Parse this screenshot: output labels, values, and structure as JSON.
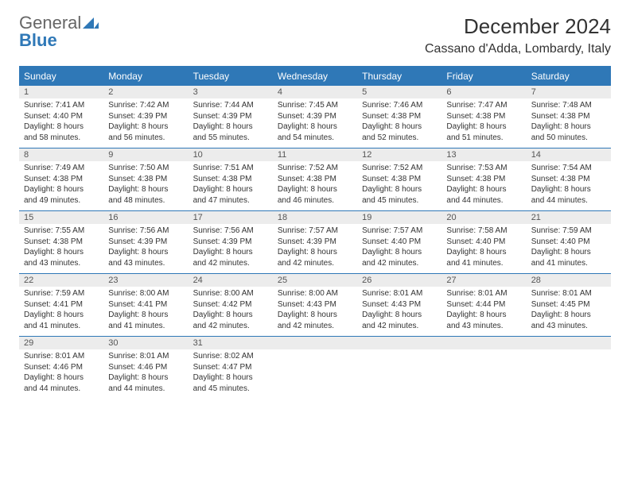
{
  "brand": {
    "part1": "General",
    "part2": "Blue"
  },
  "title": {
    "month": "December 2024",
    "location": "Cassano d'Adda, Lombardy, Italy"
  },
  "colors": {
    "accent": "#2f78b7",
    "daynum_bg": "#ececec",
    "text": "#333333",
    "bg": "#ffffff"
  },
  "dow": [
    "Sunday",
    "Monday",
    "Tuesday",
    "Wednesday",
    "Thursday",
    "Friday",
    "Saturday"
  ],
  "weeks": [
    [
      {
        "n": "1",
        "sr": "Sunrise: 7:41 AM",
        "ss": "Sunset: 4:40 PM",
        "d1": "Daylight: 8 hours",
        "d2": "and 58 minutes."
      },
      {
        "n": "2",
        "sr": "Sunrise: 7:42 AM",
        "ss": "Sunset: 4:39 PM",
        "d1": "Daylight: 8 hours",
        "d2": "and 56 minutes."
      },
      {
        "n": "3",
        "sr": "Sunrise: 7:44 AM",
        "ss": "Sunset: 4:39 PM",
        "d1": "Daylight: 8 hours",
        "d2": "and 55 minutes."
      },
      {
        "n": "4",
        "sr": "Sunrise: 7:45 AM",
        "ss": "Sunset: 4:39 PM",
        "d1": "Daylight: 8 hours",
        "d2": "and 54 minutes."
      },
      {
        "n": "5",
        "sr": "Sunrise: 7:46 AM",
        "ss": "Sunset: 4:38 PM",
        "d1": "Daylight: 8 hours",
        "d2": "and 52 minutes."
      },
      {
        "n": "6",
        "sr": "Sunrise: 7:47 AM",
        "ss": "Sunset: 4:38 PM",
        "d1": "Daylight: 8 hours",
        "d2": "and 51 minutes."
      },
      {
        "n": "7",
        "sr": "Sunrise: 7:48 AM",
        "ss": "Sunset: 4:38 PM",
        "d1": "Daylight: 8 hours",
        "d2": "and 50 minutes."
      }
    ],
    [
      {
        "n": "8",
        "sr": "Sunrise: 7:49 AM",
        "ss": "Sunset: 4:38 PM",
        "d1": "Daylight: 8 hours",
        "d2": "and 49 minutes."
      },
      {
        "n": "9",
        "sr": "Sunrise: 7:50 AM",
        "ss": "Sunset: 4:38 PM",
        "d1": "Daylight: 8 hours",
        "d2": "and 48 minutes."
      },
      {
        "n": "10",
        "sr": "Sunrise: 7:51 AM",
        "ss": "Sunset: 4:38 PM",
        "d1": "Daylight: 8 hours",
        "d2": "and 47 minutes."
      },
      {
        "n": "11",
        "sr": "Sunrise: 7:52 AM",
        "ss": "Sunset: 4:38 PM",
        "d1": "Daylight: 8 hours",
        "d2": "and 46 minutes."
      },
      {
        "n": "12",
        "sr": "Sunrise: 7:52 AM",
        "ss": "Sunset: 4:38 PM",
        "d1": "Daylight: 8 hours",
        "d2": "and 45 minutes."
      },
      {
        "n": "13",
        "sr": "Sunrise: 7:53 AM",
        "ss": "Sunset: 4:38 PM",
        "d1": "Daylight: 8 hours",
        "d2": "and 44 minutes."
      },
      {
        "n": "14",
        "sr": "Sunrise: 7:54 AM",
        "ss": "Sunset: 4:38 PM",
        "d1": "Daylight: 8 hours",
        "d2": "and 44 minutes."
      }
    ],
    [
      {
        "n": "15",
        "sr": "Sunrise: 7:55 AM",
        "ss": "Sunset: 4:38 PM",
        "d1": "Daylight: 8 hours",
        "d2": "and 43 minutes."
      },
      {
        "n": "16",
        "sr": "Sunrise: 7:56 AM",
        "ss": "Sunset: 4:39 PM",
        "d1": "Daylight: 8 hours",
        "d2": "and 43 minutes."
      },
      {
        "n": "17",
        "sr": "Sunrise: 7:56 AM",
        "ss": "Sunset: 4:39 PM",
        "d1": "Daylight: 8 hours",
        "d2": "and 42 minutes."
      },
      {
        "n": "18",
        "sr": "Sunrise: 7:57 AM",
        "ss": "Sunset: 4:39 PM",
        "d1": "Daylight: 8 hours",
        "d2": "and 42 minutes."
      },
      {
        "n": "19",
        "sr": "Sunrise: 7:57 AM",
        "ss": "Sunset: 4:40 PM",
        "d1": "Daylight: 8 hours",
        "d2": "and 42 minutes."
      },
      {
        "n": "20",
        "sr": "Sunrise: 7:58 AM",
        "ss": "Sunset: 4:40 PM",
        "d1": "Daylight: 8 hours",
        "d2": "and 41 minutes."
      },
      {
        "n": "21",
        "sr": "Sunrise: 7:59 AM",
        "ss": "Sunset: 4:40 PM",
        "d1": "Daylight: 8 hours",
        "d2": "and 41 minutes."
      }
    ],
    [
      {
        "n": "22",
        "sr": "Sunrise: 7:59 AM",
        "ss": "Sunset: 4:41 PM",
        "d1": "Daylight: 8 hours",
        "d2": "and 41 minutes."
      },
      {
        "n": "23",
        "sr": "Sunrise: 8:00 AM",
        "ss": "Sunset: 4:41 PM",
        "d1": "Daylight: 8 hours",
        "d2": "and 41 minutes."
      },
      {
        "n": "24",
        "sr": "Sunrise: 8:00 AM",
        "ss": "Sunset: 4:42 PM",
        "d1": "Daylight: 8 hours",
        "d2": "and 42 minutes."
      },
      {
        "n": "25",
        "sr": "Sunrise: 8:00 AM",
        "ss": "Sunset: 4:43 PM",
        "d1": "Daylight: 8 hours",
        "d2": "and 42 minutes."
      },
      {
        "n": "26",
        "sr": "Sunrise: 8:01 AM",
        "ss": "Sunset: 4:43 PM",
        "d1": "Daylight: 8 hours",
        "d2": "and 42 minutes."
      },
      {
        "n": "27",
        "sr": "Sunrise: 8:01 AM",
        "ss": "Sunset: 4:44 PM",
        "d1": "Daylight: 8 hours",
        "d2": "and 43 minutes."
      },
      {
        "n": "28",
        "sr": "Sunrise: 8:01 AM",
        "ss": "Sunset: 4:45 PM",
        "d1": "Daylight: 8 hours",
        "d2": "and 43 minutes."
      }
    ],
    [
      {
        "n": "29",
        "sr": "Sunrise: 8:01 AM",
        "ss": "Sunset: 4:46 PM",
        "d1": "Daylight: 8 hours",
        "d2": "and 44 minutes."
      },
      {
        "n": "30",
        "sr": "Sunrise: 8:01 AM",
        "ss": "Sunset: 4:46 PM",
        "d1": "Daylight: 8 hours",
        "d2": "and 44 minutes."
      },
      {
        "n": "31",
        "sr": "Sunrise: 8:02 AM",
        "ss": "Sunset: 4:47 PM",
        "d1": "Daylight: 8 hours",
        "d2": "and 45 minutes."
      },
      {
        "n": "",
        "sr": "",
        "ss": "",
        "d1": "",
        "d2": ""
      },
      {
        "n": "",
        "sr": "",
        "ss": "",
        "d1": "",
        "d2": ""
      },
      {
        "n": "",
        "sr": "",
        "ss": "",
        "d1": "",
        "d2": ""
      },
      {
        "n": "",
        "sr": "",
        "ss": "",
        "d1": "",
        "d2": ""
      }
    ]
  ]
}
